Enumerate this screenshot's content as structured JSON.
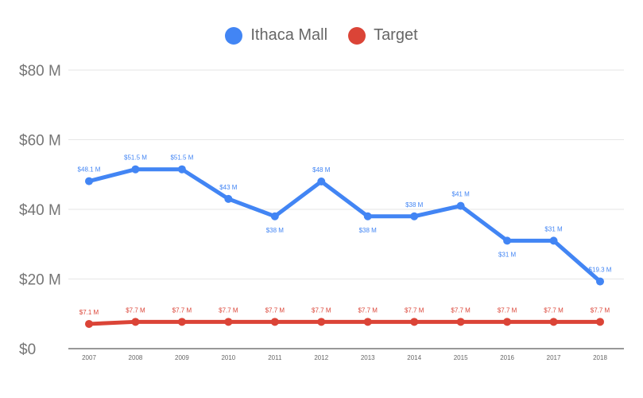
{
  "legend": [
    {
      "label": "Ithaca Mall",
      "color": "#4285f4"
    },
    {
      "label": "Target",
      "color": "#db4437"
    }
  ],
  "chart_data": {
    "type": "line",
    "title": "",
    "xlabel": "",
    "ylabel": "",
    "categories": [
      "2007",
      "2008",
      "2009",
      "2010",
      "2011",
      "2012",
      "2013",
      "2014",
      "2015",
      "2016",
      "2017",
      "2018"
    ],
    "y_ticks": [
      "$0",
      "$20 M",
      "$40 M",
      "$60 M",
      "$80 M"
    ],
    "ylim": [
      0,
      80
    ],
    "grid": true,
    "legend_position": "top",
    "series": [
      {
        "name": "Ithaca Mall",
        "color": "#4285f4",
        "values": [
          48.1,
          51.5,
          51.5,
          43,
          38,
          48,
          38,
          38,
          41,
          31,
          31,
          19.3
        ],
        "labels": [
          "$48.1 M",
          "$51.5 M",
          "$51.5 M",
          "$43  M",
          "$38 M",
          "$48 M",
          "$38 M",
          "$38 M",
          "$41 M",
          "$31 M",
          "$31 M",
          "$19.3  M"
        ]
      },
      {
        "name": "Target",
        "color": "#db4437",
        "values": [
          7.1,
          7.7,
          7.7,
          7.7,
          7.7,
          7.7,
          7.7,
          7.7,
          7.7,
          7.7,
          7.7,
          7.7
        ],
        "labels": [
          "$7.1 M",
          "$7.7 M",
          "$7.7 M",
          "$7.7 M",
          "$7.7 M",
          "$7.7 M",
          "$7.7 M",
          "$7.7 M",
          "$7.7 M",
          "$7.7 M",
          "$7.7 M",
          "$7.7 M"
        ]
      }
    ]
  }
}
